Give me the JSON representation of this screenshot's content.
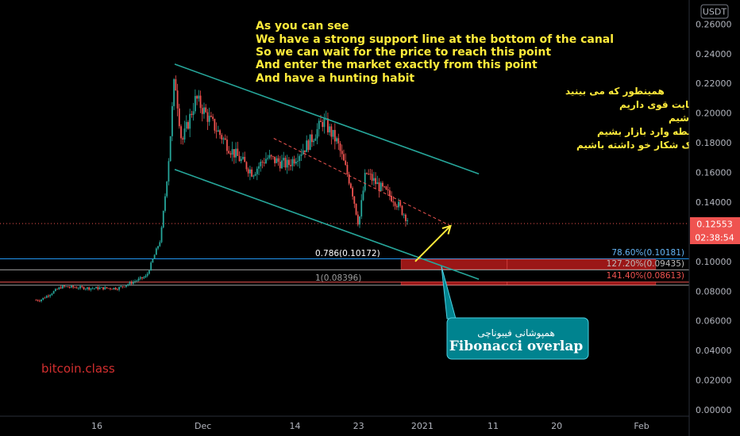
{
  "currency_badge": "USDT",
  "watermark": "bitcoin.class",
  "price_badges": {
    "last": "0.12553",
    "countdown": "02:38:54"
  },
  "annotations": {
    "english": [
      "As you can see",
      "We have a strong support line at the bottom of the canal",
      "So we can wait for the price to reach this point",
      "And enter the market exactly from this point",
      "And have a hunting habit"
    ],
    "persian": [
      "همینطور که می بینید",
      "در کف کانال یک خط حمایت قوی داریم",
      "پس می توانیم منتظر رسید قیمت به این نقطه باشیم",
      "و دقیقا از این نقطه وارد بازار بشیم",
      "و یک شکار خو داشته باشیم"
    ],
    "callout_persian": "همپوشانی فیبوناچی",
    "callout_english": "Fibonacci overlap"
  },
  "fib_labels": {
    "retr_786": "0.786(0.10172)",
    "retr_1": "1(0.08396)",
    "ext_786": "78.60%(0.10181)",
    "ext_1272": "127.20%(0.09435)",
    "ext_1414": "141.40%(0.08613)"
  },
  "chart_data": {
    "type": "candlestick",
    "y_axis": {
      "ticks": [
        0.26,
        0.24,
        0.22,
        0.2,
        0.18,
        0.16,
        0.14,
        0.1,
        0.08,
        0.06,
        0.04,
        0.02,
        0.0
      ],
      "tick_labels": [
        "0.26000",
        "0.24000",
        "0.22000",
        "0.20000",
        "0.18000",
        "0.16000",
        "0.14000",
        "0.10000",
        "0.08000",
        "0.06000",
        "0.04000",
        "0.02000",
        "0.00000"
      ],
      "range": [
        0.0,
        0.265
      ]
    },
    "x_axis": {
      "ticks": [
        {
          "label": "16",
          "date": "2020-11-16"
        },
        {
          "label": "Dec",
          "date": "2020-12-01"
        },
        {
          "label": "14",
          "date": "2020-12-14"
        },
        {
          "label": "23",
          "date": "2020-12-23"
        },
        {
          "label": "2021",
          "date": "2021-01-01"
        },
        {
          "label": "11",
          "date": "2021-01-11"
        },
        {
          "label": "20",
          "date": "2021-01-20"
        },
        {
          "label": "Feb",
          "date": "2021-02-01"
        }
      ]
    },
    "current_price": 0.12553,
    "colors": {
      "up": "#26a69a",
      "down": "#ef5350",
      "channel": "#26a69a",
      "fib_zone": "#b71c1c",
      "arrow": "#ffeb3b",
      "callout": "#00838f",
      "level_line": "#2196f3"
    },
    "price_anchors": [
      {
        "date": "2020-11-08",
        "price": 0.074
      },
      {
        "date": "2020-11-11",
        "price": 0.083
      },
      {
        "date": "2020-11-15",
        "price": 0.082
      },
      {
        "date": "2020-11-19",
        "price": 0.082
      },
      {
        "date": "2020-11-23",
        "price": 0.09
      },
      {
        "date": "2020-11-25",
        "price": 0.115
      },
      {
        "date": "2020-11-26",
        "price": 0.16
      },
      {
        "date": "2020-11-27",
        "price": 0.225
      },
      {
        "date": "2020-11-28",
        "price": 0.18
      },
      {
        "date": "2020-11-30",
        "price": 0.21
      },
      {
        "date": "2020-12-02",
        "price": 0.195
      },
      {
        "date": "2020-12-05",
        "price": 0.175
      },
      {
        "date": "2020-12-08",
        "price": 0.16
      },
      {
        "date": "2020-12-10",
        "price": 0.17
      },
      {
        "date": "2020-12-13",
        "price": 0.165
      },
      {
        "date": "2020-12-16",
        "price": 0.18
      },
      {
        "date": "2020-12-18",
        "price": 0.195
      },
      {
        "date": "2020-12-20",
        "price": 0.18
      },
      {
        "date": "2020-12-22",
        "price": 0.15
      },
      {
        "date": "2020-12-23",
        "price": 0.125
      },
      {
        "date": "2020-12-24",
        "price": 0.16
      },
      {
        "date": "2020-12-26",
        "price": 0.15
      },
      {
        "date": "2020-12-28",
        "price": 0.142
      },
      {
        "date": "2020-12-30",
        "price": 0.128
      }
    ],
    "channel_top": [
      {
        "date": "2020-11-27",
        "price": 0.233
      },
      {
        "date": "2021-01-09",
        "price": 0.159
      }
    ],
    "channel_bottom": [
      {
        "date": "2020-11-27",
        "price": 0.162
      },
      {
        "date": "2021-01-09",
        "price": 0.088
      }
    ],
    "channel_mid": [
      {
        "date": "2020-12-11",
        "price": 0.183
      },
      {
        "date": "2021-01-05",
        "price": 0.124
      }
    ],
    "forecast_arrow": [
      {
        "date": "2020-12-31",
        "price": 0.1
      },
      {
        "date": "2021-01-05",
        "price": 0.124
      }
    ],
    "fib_zones": [
      {
        "from_date": "2020-12-29",
        "to_date": "2021-01-13",
        "top": 0.1015,
        "bottom": 0.0948
      },
      {
        "from_date": "2020-12-29",
        "to_date": "2021-01-13",
        "top": 0.0862,
        "bottom": 0.0842
      }
    ],
    "ext_zones": [
      {
        "from_date": "2021-01-13",
        "to_date": "2021-02-03",
        "top": 0.1015,
        "bottom": 0.0948
      },
      {
        "from_date": "2021-01-13",
        "to_date": "2021-02-03",
        "top": 0.0862,
        "bottom": 0.0842
      }
    ],
    "level_lines": [
      {
        "price": 0.1018,
        "color": "#2196f3"
      },
      {
        "price": 0.0944,
        "color": "#9e9e9e"
      },
      {
        "price": 0.0861,
        "color": "#ef5350"
      },
      {
        "price": 0.084,
        "color": "#9e9e9e"
      },
      {
        "price": 0.12553,
        "color": "#ef5350",
        "dotted": true
      }
    ]
  }
}
